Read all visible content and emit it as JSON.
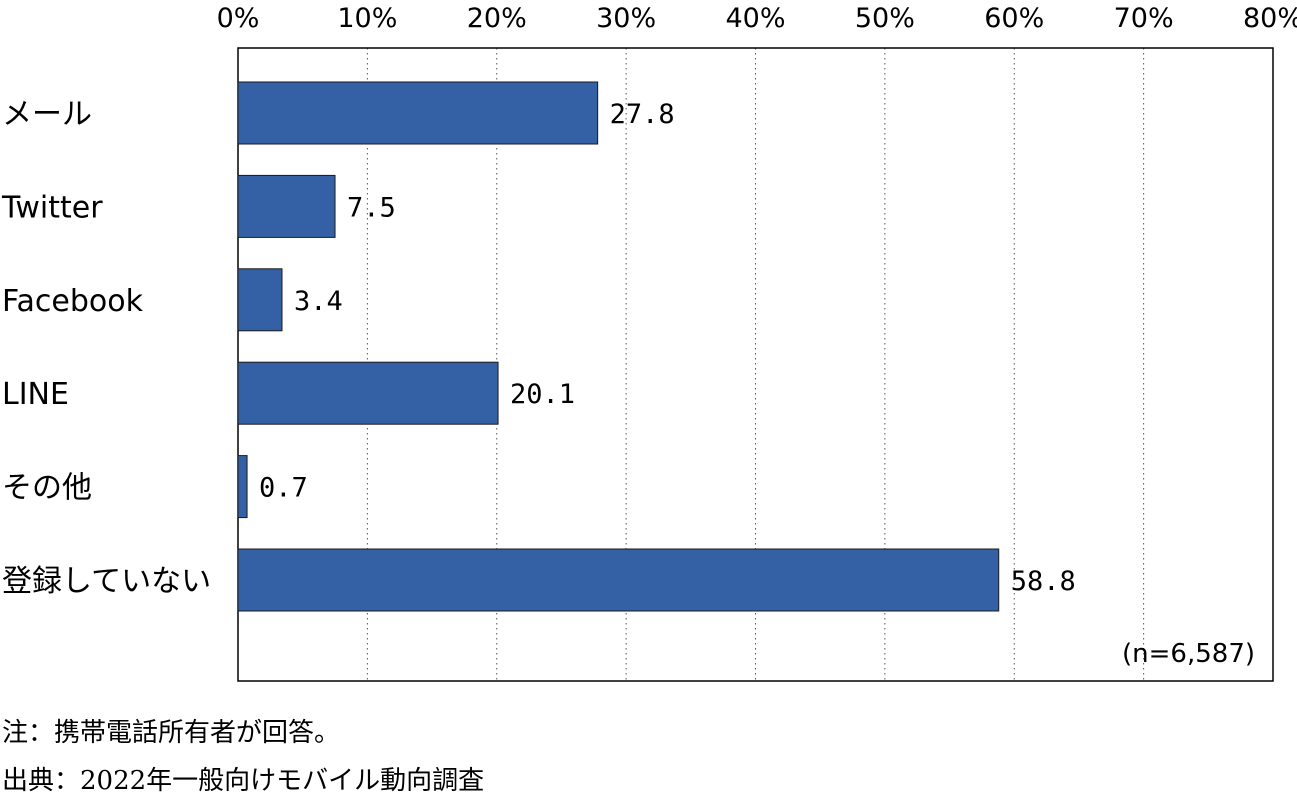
{
  "chart_data": {
    "type": "bar",
    "orientation": "horizontal",
    "categories": [
      "メール",
      "Twitter",
      "Facebook",
      "LINE",
      "その他",
      "登録していない"
    ],
    "values": [
      27.8,
      7.5,
      3.4,
      20.1,
      0.7,
      58.8
    ],
    "x_ticks": [
      "0%",
      "10%",
      "20%",
      "30%",
      "40%",
      "50%",
      "60%",
      "70%",
      "80%"
    ],
    "xlim": [
      0,
      80
    ],
    "grid": "vertical dotted",
    "bar_color": "#3461A6",
    "sample_note": "(n=6,587)"
  },
  "footnotes": {
    "note": "注：携帯電話所有者が回答。",
    "source": "出典：2022年一般向けモバイル動向調査"
  }
}
